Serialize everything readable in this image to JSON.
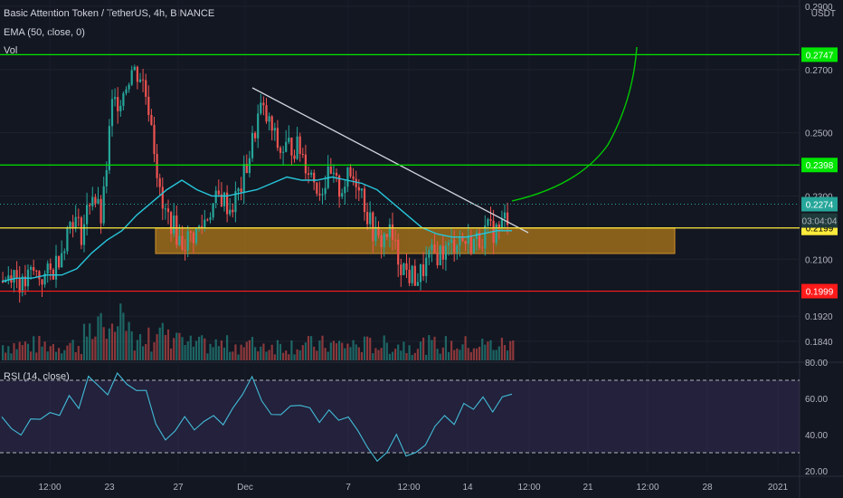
{
  "legend": {
    "symbol": "Basic Attention Token / TetherUS, 4h, BINANCE",
    "ema": "EMA (50, close, 0)",
    "vol": "Vol",
    "currency": "USDT"
  },
  "rsi_label": "RSI (14, close)",
  "colors": {
    "background": "#131722",
    "up": "#26a69a",
    "down": "#ef5350",
    "ema": "#26c6da",
    "support_line": "#00e600",
    "yellow_line": "#ffeb3b",
    "red_line": "#ff1a1a",
    "zone": "#b07a1a",
    "trendline": "#d1d4dc",
    "rsi": "#42bcd9",
    "rsi_band": "#7e57c2"
  },
  "chart_data": [
    {
      "type": "candlestick",
      "title": "Basic Attention Token / TetherUS, 4h, BINANCE",
      "ylim": [
        0.178,
        0.292
      ],
      "y_ticks": [
        "0.2900",
        "0.2700",
        "0.2500",
        "0.2300",
        "0.2100",
        "0.1920",
        "0.1840"
      ],
      "x_ticks": [
        "12:00",
        "23",
        "27",
        "Dec",
        "7",
        "12:00",
        "14",
        "12:00",
        "21",
        "12:00",
        "28",
        "2021"
      ],
      "price_close_path": [
        0.203,
        0.207,
        0.201,
        0.206,
        0.204,
        0.206,
        0.214,
        0.224,
        0.218,
        0.232,
        0.222,
        0.258,
        0.262,
        0.27,
        0.268,
        0.255,
        0.226,
        0.222,
        0.215,
        0.217,
        0.22,
        0.226,
        0.23,
        0.226,
        0.232,
        0.244,
        0.258,
        0.252,
        0.244,
        0.246,
        0.245,
        0.238,
        0.232,
        0.236,
        0.232,
        0.236,
        0.235,
        0.222,
        0.215,
        0.219,
        0.21,
        0.205,
        0.204,
        0.21,
        0.212,
        0.213,
        0.217,
        0.215,
        0.216,
        0.219,
        0.219,
        0.224
      ],
      "ema_path": [
        0.203,
        0.204,
        0.204,
        0.205,
        0.205,
        0.207,
        0.212,
        0.216,
        0.219,
        0.224,
        0.228,
        0.232,
        0.235,
        0.232,
        0.23,
        0.23,
        0.231,
        0.232,
        0.234,
        0.236,
        0.235,
        0.235,
        0.236,
        0.235,
        0.234,
        0.232,
        0.228,
        0.224,
        0.22,
        0.218,
        0.217,
        0.217,
        0.218,
        0.219,
        0.219
      ],
      "horizontal_levels": [
        {
          "label": "0.2747",
          "value": 0.2747,
          "color": "#00e600"
        },
        {
          "label": "0.2398",
          "value": 0.2398,
          "color": "#00e600"
        },
        {
          "label": "0.2199",
          "value": 0.2199,
          "color": "#ffeb3b"
        },
        {
          "label": "0.1999",
          "value": 0.1999,
          "color": "#ff1a1a"
        }
      ],
      "current_price": {
        "label": "0.2274",
        "value": 0.2274
      },
      "countdown": "03:04:04",
      "zone": {
        "from": 0.2118,
        "to": 0.2199
      },
      "projection_end": 0.274
    },
    {
      "type": "line",
      "title": "RSI (14, close)",
      "ylim": [
        20,
        80
      ],
      "y_ticks": [
        "80.00",
        "60.00",
        "40.00",
        "20.00"
      ],
      "bands": [
        30,
        70
      ],
      "values": [
        52,
        44,
        38,
        50,
        46,
        54,
        48,
        60,
        55,
        72,
        68,
        60,
        74,
        70,
        62,
        66,
        46,
        40,
        44,
        48,
        42,
        46,
        50,
        48,
        56,
        64,
        70,
        60,
        54,
        52,
        58,
        56,
        52,
        48,
        56,
        50,
        52,
        44,
        34,
        28,
        32,
        38,
        28,
        30,
        36,
        42,
        50,
        44,
        56,
        52,
        58,
        54,
        60,
        64
      ]
    }
  ]
}
